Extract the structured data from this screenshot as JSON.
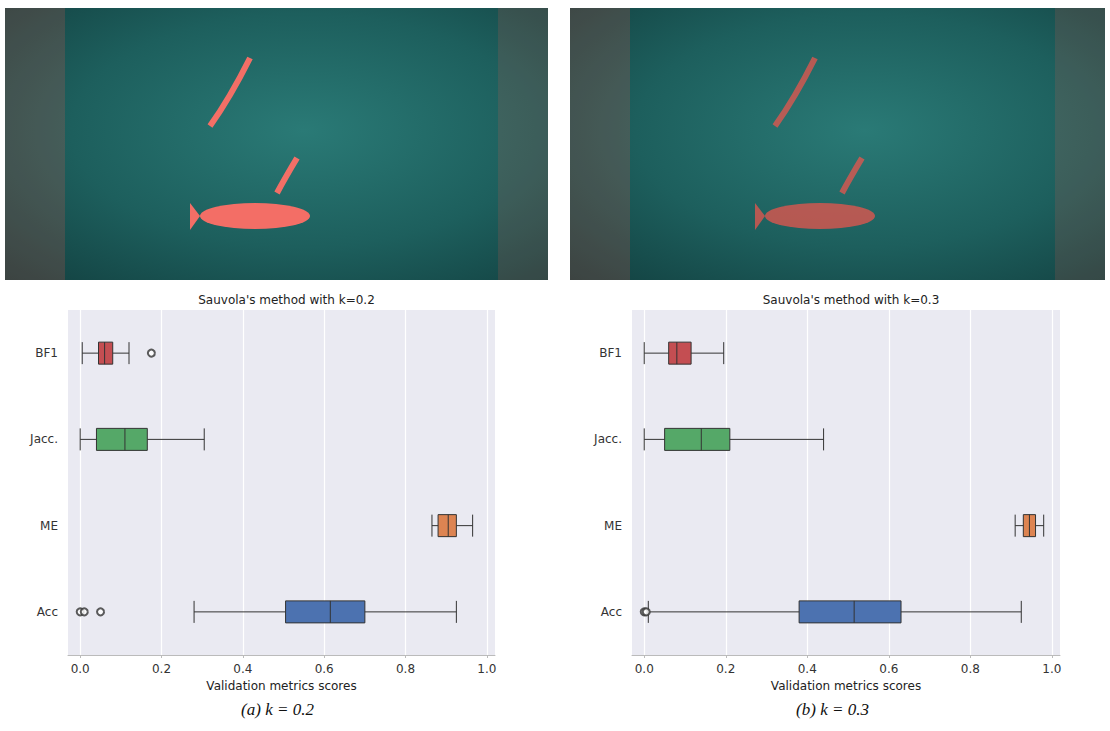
{
  "chart_data": [
    {
      "type": "boxplot",
      "orientation": "horizontal",
      "title": "Sauvola's method with k=0.2",
      "caption": "(a) k = 0.2",
      "xlabel": "Validation metrics scores",
      "categories": [
        "BF1",
        "Jacc.",
        "ME",
        "Acc"
      ],
      "boxes": [
        [
          0.005,
          0.045,
          0.06,
          0.08,
          0.12
        ],
        [
          0.0,
          0.04,
          0.11,
          0.165,
          0.305
        ],
        [
          0.865,
          0.88,
          0.905,
          0.925,
          0.965
        ],
        [
          0.28,
          0.505,
          0.615,
          0.7,
          0.925
        ]
      ],
      "outliers": [
        [
          0.175
        ],
        [],
        [],
        [
          0.0,
          0.01,
          0.05
        ]
      ],
      "colors": [
        "#c44e52",
        "#55a868",
        "#dd8452",
        "#4c72b0"
      ],
      "xlim": [
        -0.03,
        1.02
      ],
      "xticks": [
        {
          "value": 0,
          "label": "0.0"
        },
        0.2,
        0.4,
        0.6,
        0.8,
        {
          "value": 1,
          "label": "1.0"
        }
      ],
      "grid": true
    },
    {
      "type": "boxplot",
      "orientation": "horizontal",
      "title": "Sauvola's method with k=0.3",
      "caption": "(b) k = 0.3",
      "xlabel": "Validation metrics scores",
      "categories": [
        "BF1",
        "Jacc.",
        "ME",
        "Acc"
      ],
      "boxes": [
        [
          0.0,
          0.06,
          0.08,
          0.115,
          0.195
        ],
        [
          0.0,
          0.05,
          0.14,
          0.21,
          0.44
        ],
        [
          0.91,
          0.93,
          0.945,
          0.96,
          0.98
        ],
        [
          0.01,
          0.38,
          0.515,
          0.63,
          0.925
        ]
      ],
      "outliers": [
        [],
        [],
        [],
        [
          0.0,
          0.005
        ]
      ],
      "colors": [
        "#c44e52",
        "#55a868",
        "#dd8452",
        "#4c72b0"
      ],
      "xlim": [
        -0.03,
        1.02
      ],
      "xticks": [
        {
          "value": 0,
          "label": "0.0"
        },
        0.2,
        0.4,
        0.6,
        0.8,
        {
          "value": 1,
          "label": "1.0"
        }
      ],
      "grid": true
    }
  ]
}
